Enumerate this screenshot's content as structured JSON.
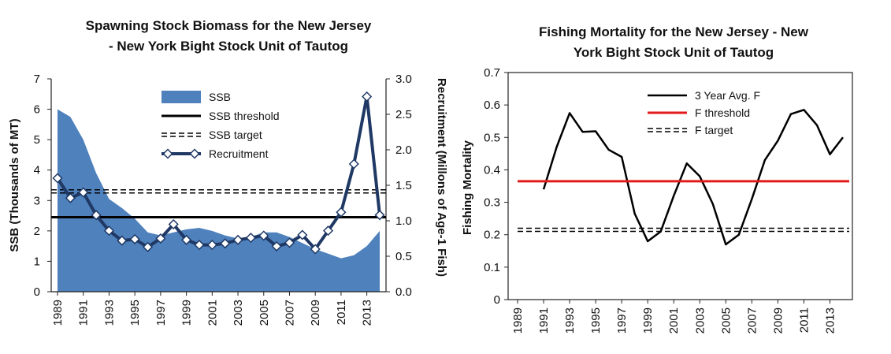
{
  "chart_data": [
    {
      "type": "area",
      "title_lines": [
        "Spawning Stock Biomass for the New Jersey",
        "- New York Bight Stock Unit of Tautog"
      ],
      "ylabel": "SSB (Thousands of MT)",
      "y2label": "Recruitment (Millons of Age-1 Fish)",
      "x": [
        1989,
        1990,
        1991,
        1992,
        1993,
        1994,
        1995,
        1996,
        1997,
        1998,
        1999,
        2000,
        2001,
        2002,
        2003,
        2004,
        2005,
        2006,
        2007,
        2008,
        2009,
        2010,
        2011,
        2012,
        2013,
        2014
      ],
      "xticks": [
        1989,
        1991,
        1993,
        1995,
        1997,
        1999,
        2001,
        2003,
        2005,
        2007,
        2009,
        2011,
        2013
      ],
      "ylim": [
        0,
        7
      ],
      "yticks": [
        0,
        1,
        2,
        3,
        4,
        5,
        6,
        7
      ],
      "y2lim": [
        0,
        3
      ],
      "y2ticks": [
        "0.0",
        "0.5",
        "1.0",
        "1.5",
        "2.0",
        "2.5",
        "3.0"
      ],
      "legend_position": "top-center",
      "series": [
        {
          "name": "SSB",
          "kind": "area",
          "axis": "left",
          "color": "#4f81bd",
          "values": [
            6.0,
            5.75,
            5.0,
            3.9,
            3.05,
            2.75,
            2.4,
            1.95,
            1.85,
            1.95,
            2.05,
            2.1,
            2.0,
            1.85,
            1.75,
            1.8,
            1.95,
            1.95,
            1.8,
            1.6,
            1.4,
            1.25,
            1.1,
            1.2,
            1.5,
            2.0
          ]
        },
        {
          "name": "SSB threshold",
          "kind": "hline",
          "axis": "left",
          "color": "#000000",
          "value": 2.45
        },
        {
          "name": "SSB target",
          "kind": "hline-dashed",
          "axis": "left",
          "color": "#000000",
          "value": 3.3
        },
        {
          "name": "Recruitment",
          "kind": "line-diamond",
          "axis": "right",
          "color": "#1f3864",
          "values": [
            1.6,
            1.32,
            1.4,
            1.08,
            0.86,
            0.72,
            0.74,
            0.63,
            0.75,
            0.95,
            0.73,
            0.66,
            0.66,
            0.68,
            0.73,
            0.76,
            0.79,
            0.64,
            0.69,
            0.8,
            0.6,
            0.86,
            1.12,
            1.8,
            2.75,
            1.08
          ]
        }
      ]
    },
    {
      "type": "line",
      "title_lines": [
        "Fishing Mortality for the New Jersey - New",
        "York Bight Stock Unit of Tautog"
      ],
      "ylabel": "Fishing Mortality",
      "x": [
        1989,
        1990,
        1991,
        1992,
        1993,
        1994,
        1995,
        1996,
        1997,
        1998,
        1999,
        2000,
        2001,
        2002,
        2003,
        2004,
        2005,
        2006,
        2007,
        2008,
        2009,
        2010,
        2011,
        2012,
        2013,
        2014
      ],
      "xticks": [
        1989,
        1991,
        1993,
        1995,
        1997,
        1999,
        2001,
        2003,
        2005,
        2007,
        2009,
        2011,
        2013
      ],
      "ylim": [
        0,
        0.7
      ],
      "yticks": [
        "0",
        "0.1",
        "0.2",
        "0.3",
        "0.4",
        "0.5",
        "0.6",
        "0.7"
      ],
      "legend_position": "top-center",
      "series": [
        {
          "name": "3 Year Avg. F",
          "kind": "line",
          "color": "#000000",
          "values": [
            null,
            null,
            0.34,
            0.47,
            0.575,
            0.517,
            0.519,
            0.462,
            0.44,
            0.265,
            0.18,
            0.21,
            0.32,
            0.42,
            0.38,
            0.295,
            0.17,
            0.2,
            0.31,
            0.43,
            0.49,
            0.572,
            0.585,
            0.538,
            0.448,
            0.5
          ]
        },
        {
          "name": "F threshold",
          "kind": "hline",
          "color": "#e31a1c",
          "value": 0.365
        },
        {
          "name": "F target",
          "kind": "hline-dashed",
          "color": "#000000",
          "value": 0.215
        }
      ]
    }
  ]
}
